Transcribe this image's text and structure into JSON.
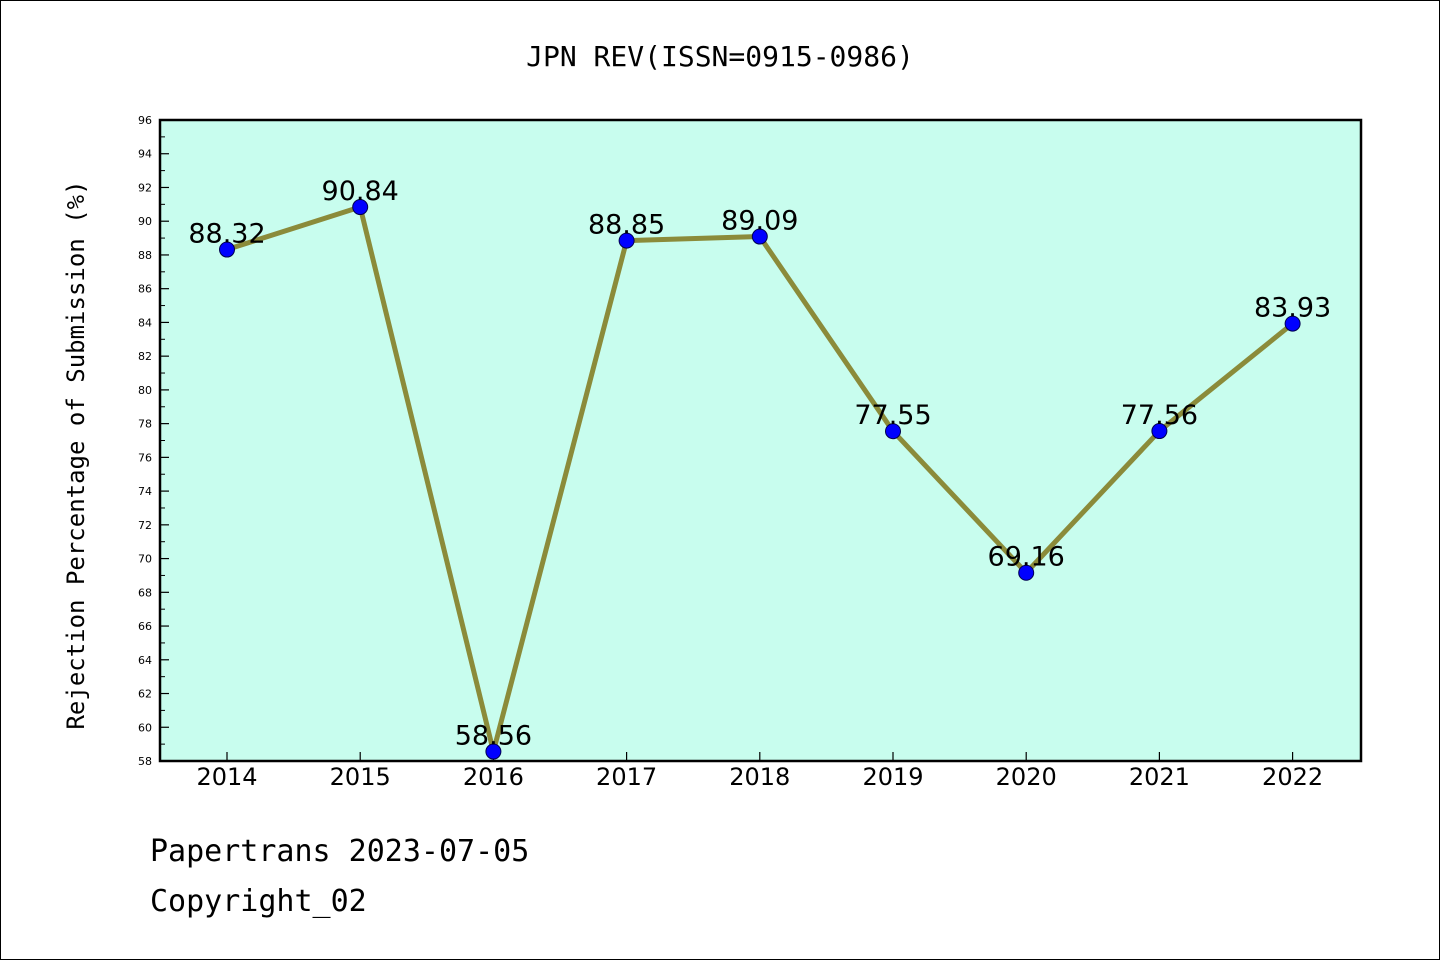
{
  "chart_data": {
    "type": "line",
    "title": "JPN REV(ISSN=0915-0986)",
    "xlabel": "",
    "ylabel": "Rejection Percentage of Submission (%)",
    "categories": [
      "2014",
      "2015",
      "2016",
      "2017",
      "2018",
      "2019",
      "2020",
      "2021",
      "2022"
    ],
    "values": [
      88.32,
      90.84,
      58.56,
      88.85,
      89.09,
      77.55,
      69.16,
      77.56,
      83.93
    ],
    "data_labels": [
      "88.32",
      "90.84",
      "58.56",
      "88.85",
      "89.09",
      "77.55",
      "69.16",
      "77.56",
      "83.93"
    ],
    "ylim": [
      58,
      96
    ],
    "y_ticks": [
      58,
      60,
      62,
      64,
      66,
      68,
      70,
      72,
      74,
      76,
      78,
      80,
      82,
      84,
      86,
      88,
      90,
      92,
      94,
      96
    ],
    "grid": false,
    "legend": "none",
    "colors": {
      "plot_background": "#c8fdee",
      "line": "#8b8b3a",
      "marker": "#0000ff"
    }
  },
  "footer": {
    "line1": "Papertrans 2023-07-05",
    "line2": "Copyright_02"
  }
}
